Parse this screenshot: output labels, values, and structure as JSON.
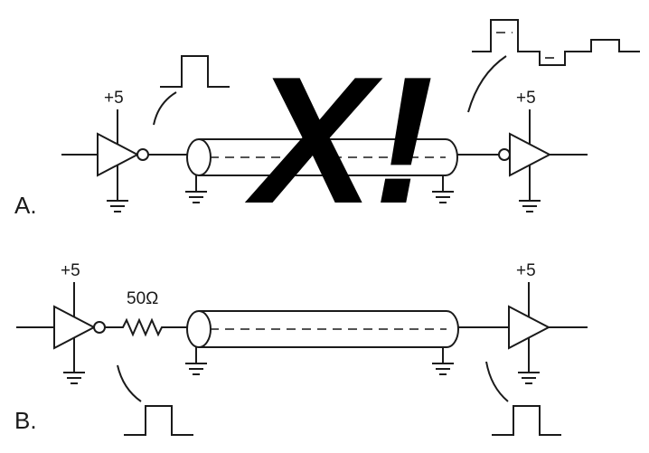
{
  "circuit_a": {
    "label": "A.",
    "driver_supply": "+5",
    "receiver_supply": "+5",
    "overlay_mark": "X!"
  },
  "circuit_b": {
    "label": "B.",
    "driver_supply": "+5",
    "receiver_supply": "+5",
    "series_resistor": "50Ω"
  }
}
